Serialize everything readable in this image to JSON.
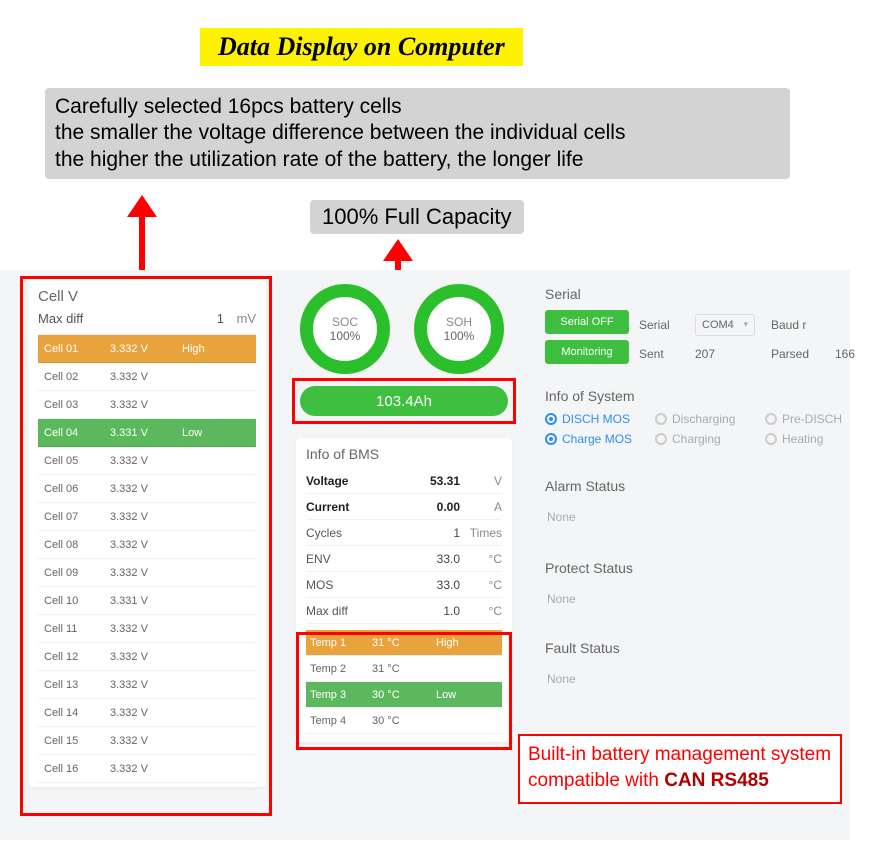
{
  "banner": {
    "title": "Data Display on Computer"
  },
  "description": {
    "line1": "Carefully selected 16pcs battery cells",
    "line2": "the smaller the voltage difference between the individual cells",
    "line3": "the higher the utilization rate of the battery, the longer life"
  },
  "capacity_label": "100% Full Capacity",
  "colors": {
    "highlight_yellow": "#fff200",
    "annotation_red": "#ff0000",
    "button_green": "#3fbf3f",
    "ring_green": "#2bbf2b",
    "row_high_orange": "#e8a33d",
    "row_low_green": "#5cb85c",
    "radio_blue": "#2f8ef4",
    "panel_bg": "#f3f5f7"
  },
  "cellv": {
    "title": "Cell V",
    "maxdiff_label": "Max diff",
    "maxdiff_value": "1",
    "maxdiff_unit": "mV",
    "rows": [
      {
        "name": "Cell 01",
        "v": "3.332 V",
        "status": "High",
        "cls": "high"
      },
      {
        "name": "Cell 02",
        "v": "3.332 V",
        "status": "",
        "cls": ""
      },
      {
        "name": "Cell 03",
        "v": "3.332 V",
        "status": "",
        "cls": ""
      },
      {
        "name": "Cell 04",
        "v": "3.331 V",
        "status": "Low",
        "cls": "low"
      },
      {
        "name": "Cell 05",
        "v": "3.332 V",
        "status": "",
        "cls": ""
      },
      {
        "name": "Cell 06",
        "v": "3.332 V",
        "status": "",
        "cls": ""
      },
      {
        "name": "Cell 07",
        "v": "3.332 V",
        "status": "",
        "cls": ""
      },
      {
        "name": "Cell 08",
        "v": "3.332 V",
        "status": "",
        "cls": ""
      },
      {
        "name": "Cell 09",
        "v": "3.332 V",
        "status": "",
        "cls": ""
      },
      {
        "name": "Cell 10",
        "v": "3.331 V",
        "status": "",
        "cls": ""
      },
      {
        "name": "Cell 11",
        "v": "3.332 V",
        "status": "",
        "cls": ""
      },
      {
        "name": "Cell 12",
        "v": "3.332 V",
        "status": "",
        "cls": ""
      },
      {
        "name": "Cell 13",
        "v": "3.332 V",
        "status": "",
        "cls": ""
      },
      {
        "name": "Cell 14",
        "v": "3.332 V",
        "status": "",
        "cls": ""
      },
      {
        "name": "Cell 15",
        "v": "3.332 V",
        "status": "",
        "cls": ""
      },
      {
        "name": "Cell 16",
        "v": "3.332 V",
        "status": "",
        "cls": ""
      }
    ]
  },
  "gauges": {
    "soc": {
      "label": "SOC",
      "value": "100%"
    },
    "soh": {
      "label": "SOH",
      "value": "100%"
    }
  },
  "capacity_bar": "103.4Ah",
  "bms": {
    "title": "Info of BMS",
    "rows": [
      {
        "label": "Voltage",
        "value": "53.31",
        "unit": "V",
        "bold": true
      },
      {
        "label": "Current",
        "value": "0.00",
        "unit": "A",
        "bold": true
      },
      {
        "label": "Cycles",
        "value": "1",
        "unit": "Times",
        "bold": false
      },
      {
        "label": "ENV",
        "value": "33.0",
        "unit": "°C",
        "bold": false
      },
      {
        "label": "MOS",
        "value": "33.0",
        "unit": "°C",
        "bold": false
      },
      {
        "label": "Max diff",
        "value": "1.0",
        "unit": "°C",
        "bold": false
      }
    ],
    "temps": [
      {
        "name": "Temp 1",
        "v": "31 °C",
        "status": "High",
        "cls": "high"
      },
      {
        "name": "Temp 2",
        "v": "31 °C",
        "status": "",
        "cls": ""
      },
      {
        "name": "Temp 3",
        "v": "30 °C",
        "status": "Low",
        "cls": "low"
      },
      {
        "name": "Temp 4",
        "v": "30 °C",
        "status": "",
        "cls": ""
      }
    ]
  },
  "serial": {
    "title": "Serial",
    "btn_off": "Serial OFF",
    "btn_mon": "Monitoring",
    "serial_label": "Serial",
    "serial_value": "COM4",
    "baud_label": "Baud r",
    "sent_label": "Sent",
    "sent_value": "207",
    "parsed_label": "Parsed",
    "parsed_value": "166"
  },
  "sysinfo": {
    "title": "Info of System",
    "items": [
      {
        "label": "DISCH MOS",
        "on": true
      },
      {
        "label": "Discharging",
        "on": false
      },
      {
        "label": "Pre-DISCH",
        "on": false
      },
      {
        "label": "Charge MOS",
        "on": true
      },
      {
        "label": "Charging",
        "on": false
      },
      {
        "label": "Heating",
        "on": false
      }
    ]
  },
  "alarm": {
    "title": "Alarm Status",
    "value": "None"
  },
  "protect": {
    "title": "Protect Status",
    "value": "None"
  },
  "fault": {
    "title": "Fault Status",
    "value": "None"
  },
  "callout": {
    "line1": "Built-in battery management system",
    "line2_a": "compatible with ",
    "line2_b": "CAN RS485"
  }
}
